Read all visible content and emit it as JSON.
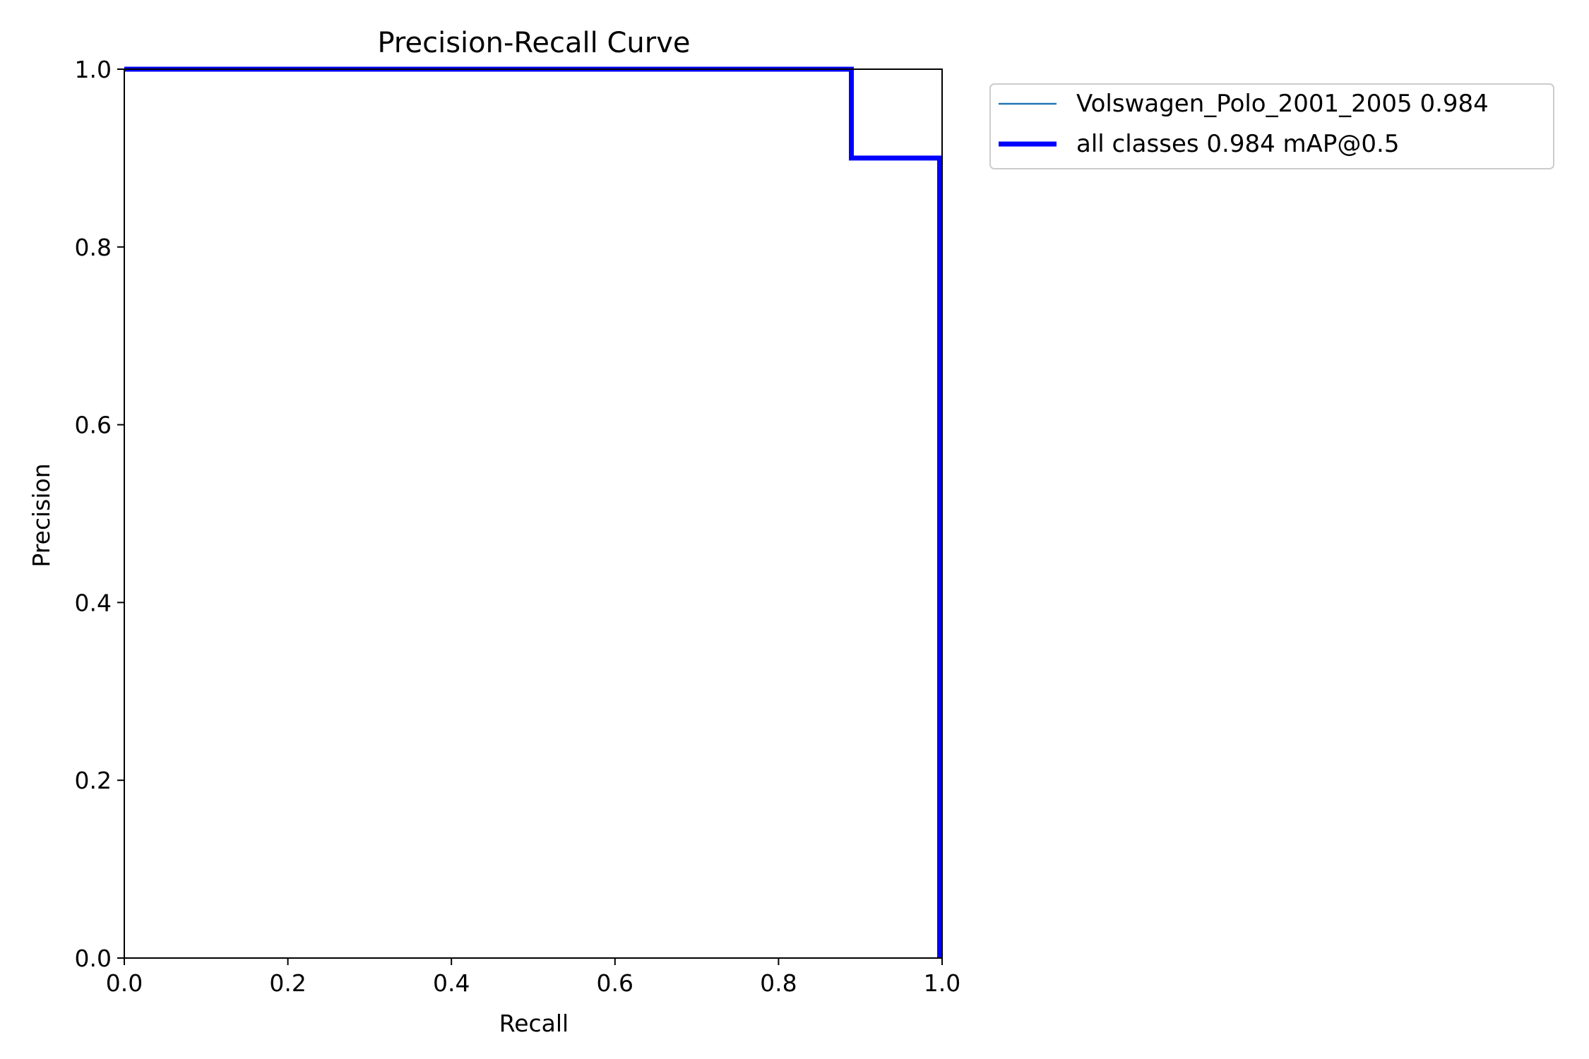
{
  "chart_data": {
    "type": "line",
    "title": "Precision-Recall Curve",
    "xlabel": "Recall",
    "ylabel": "Precision",
    "xlim": [
      0,
      1
    ],
    "ylim": [
      0,
      1
    ],
    "xticks": [
      0.0,
      0.2,
      0.4,
      0.6,
      0.8,
      1.0
    ],
    "yticks": [
      0.0,
      0.2,
      0.4,
      0.6,
      0.8,
      1.0
    ],
    "xtick_labels": [
      "0.0",
      "0.2",
      "0.4",
      "0.6",
      "0.8",
      "1.0"
    ],
    "ytick_labels": [
      "0.0",
      "0.2",
      "0.4",
      "0.6",
      "0.8",
      "1.0"
    ],
    "grid": false,
    "legend": "outside-top-right",
    "series": [
      {
        "name": "Volswagen_Polo_2001_2005 0.984",
        "color": "#1f77b4",
        "x": [
          0.0,
          0.889,
          0.889,
          0.997,
          0.997
        ],
        "y": [
          1.0,
          1.0,
          0.9,
          0.9,
          0.0
        ]
      },
      {
        "name": "all classes 0.984 mAP@0.5",
        "color": "#0000ff",
        "x": [
          0.0,
          0.889,
          0.889,
          0.997,
          0.997
        ],
        "y": [
          1.0,
          1.0,
          0.9,
          0.9,
          0.0
        ]
      }
    ]
  }
}
